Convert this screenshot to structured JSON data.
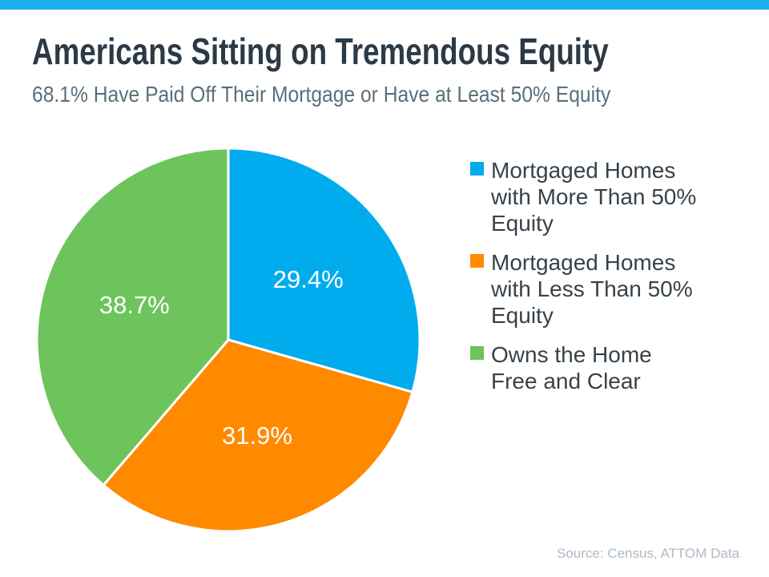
{
  "page": {
    "title": "Americans Sitting on Tremendous Equity",
    "subtitle": "68.1% Have Paid Off Their Mortgage or Have at Least 50% Equity",
    "source": "Source: Census, ATTOM Data",
    "accent_bar_color": "#1CADEB"
  },
  "chart_data": {
    "type": "pie",
    "title": "Americans Sitting on Tremendous Equity",
    "subtitle": "68.1% Have Paid Off Their Mortgage or Have at Least 50% Equity",
    "start_angle_deg": 0,
    "direction": "clockwise",
    "legend_position": "right",
    "label_color": "#FFFFFF",
    "slices": [
      {
        "label": "Mortgaged Homes\nwith More Than 50%\nEquity",
        "value": 29.4,
        "display": "29.4%",
        "color": "#00ABEE"
      },
      {
        "label": "Mortgaged Homes\nwith Less Than 50%\nEquity",
        "value": 31.9,
        "display": "31.9%",
        "color": "#FF8A00"
      },
      {
        "label": "Owns the Home\nFree and Clear",
        "value": 38.7,
        "display": "38.7%",
        "color": "#6DC45C"
      }
    ]
  }
}
